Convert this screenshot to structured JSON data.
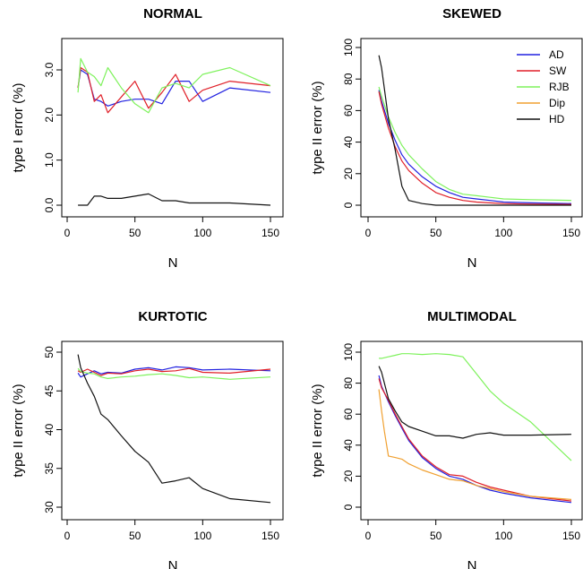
{
  "chart_data": [
    {
      "type": "line",
      "title": "NORMAL",
      "xlabel": "N",
      "ylabel": "type I error (%)",
      "xlim": [
        0,
        150
      ],
      "ylim": [
        0,
        3.5
      ],
      "xticks": [
        0,
        50,
        100,
        150
      ],
      "yticks": [
        0.0,
        1.0,
        2.0,
        3.0
      ],
      "ytick_labels": [
        "0.0",
        "1.0",
        "2.0",
        "3.0"
      ],
      "series": [
        {
          "name": "AD",
          "color": "#2020e0",
          "x": [
            8,
            10,
            15,
            20,
            25,
            30,
            40,
            50,
            60,
            70,
            80,
            90,
            100,
            120,
            150
          ],
          "y": [
            2.6,
            3.0,
            2.9,
            2.35,
            2.3,
            2.2,
            2.3,
            2.35,
            2.35,
            2.25,
            2.75,
            2.75,
            2.3,
            2.6,
            2.5
          ]
        },
        {
          "name": "SW",
          "color": "#e01f28",
          "x": [
            8,
            10,
            15,
            20,
            25,
            30,
            40,
            50,
            60,
            70,
            80,
            90,
            100,
            120,
            150
          ],
          "y": [
            2.6,
            3.05,
            2.95,
            2.3,
            2.45,
            2.05,
            2.4,
            2.75,
            2.15,
            2.5,
            2.9,
            2.3,
            2.55,
            2.75,
            2.65
          ]
        },
        {
          "name": "RJB",
          "color": "#7ef25c",
          "x": [
            8,
            10,
            15,
            20,
            25,
            30,
            40,
            50,
            60,
            70,
            80,
            90,
            100,
            120,
            150
          ],
          "y": [
            2.5,
            3.25,
            2.95,
            2.85,
            2.65,
            3.05,
            2.6,
            2.25,
            2.05,
            2.6,
            2.7,
            2.6,
            2.9,
            3.05,
            2.65
          ]
        },
        {
          "name": "HD",
          "color": "#111111",
          "x": [
            8,
            10,
            15,
            20,
            25,
            30,
            40,
            50,
            60,
            70,
            80,
            90,
            100,
            120,
            150
          ],
          "y": [
            0.0,
            0.0,
            0.0,
            0.2,
            0.2,
            0.15,
            0.15,
            0.2,
            0.25,
            0.1,
            0.1,
            0.05,
            0.05,
            0.05,
            0.0
          ]
        }
      ]
    },
    {
      "type": "line",
      "title": "SKEWED",
      "xlabel": "N",
      "ylabel": "type II error (%)",
      "xlim": [
        0,
        150
      ],
      "ylim": [
        0,
        100
      ],
      "xticks": [
        0,
        50,
        100,
        150
      ],
      "yticks": [
        0,
        20,
        40,
        60,
        80,
        100
      ],
      "legend": {
        "position": "top-right",
        "entries": [
          "AD",
          "SW",
          "RJB",
          "Dip",
          "HD"
        ]
      },
      "series": [
        {
          "name": "AD",
          "color": "#2020e0",
          "x": [
            8,
            10,
            15,
            20,
            25,
            30,
            40,
            50,
            60,
            70,
            80,
            90,
            100,
            120,
            150
          ],
          "y": [
            73,
            66,
            52,
            41,
            32,
            26,
            18,
            12,
            8,
            5,
            4,
            3,
            2,
            1.5,
            1
          ]
        },
        {
          "name": "SW",
          "color": "#e01f28",
          "x": [
            8,
            10,
            15,
            20,
            25,
            30,
            40,
            50,
            60,
            70,
            80,
            90,
            100,
            120,
            150
          ],
          "y": [
            72,
            64,
            49,
            37,
            28,
            22,
            14,
            8,
            5,
            3,
            2,
            1.5,
            1,
            0.7,
            0.5
          ]
        },
        {
          "name": "RJB",
          "color": "#7ef25c",
          "x": [
            8,
            10,
            15,
            20,
            25,
            30,
            40,
            50,
            60,
            70,
            80,
            90,
            100,
            120,
            150
          ],
          "y": [
            75,
            69,
            56,
            46,
            38,
            32,
            23,
            15,
            10,
            7,
            6,
            5,
            4,
            3.5,
            3
          ]
        },
        {
          "name": "Dip",
          "color": "#f0a030",
          "x": [],
          "y": []
        },
        {
          "name": "HD",
          "color": "#111111",
          "x": [
            8,
            10,
            15,
            20,
            25,
            30,
            40,
            50,
            60,
            70,
            80,
            90,
            100,
            120,
            150
          ],
          "y": [
            95,
            87,
            55,
            35,
            12,
            3,
            1,
            0,
            0,
            0,
            0,
            0,
            0,
            0,
            0
          ]
        }
      ]
    },
    {
      "type": "line",
      "title": "KURTOTIC",
      "xlabel": "N",
      "ylabel": "type II error (%)",
      "xlim": [
        0,
        150
      ],
      "ylim": [
        29.5,
        50.5
      ],
      "xticks": [
        0,
        50,
        100,
        150
      ],
      "yticks": [
        30,
        35,
        40,
        45,
        50
      ],
      "series": [
        {
          "name": "AD",
          "color": "#2020e0",
          "x": [
            8,
            10,
            15,
            20,
            25,
            30,
            40,
            50,
            60,
            70,
            80,
            90,
            100,
            120,
            150
          ],
          "y": [
            47.3,
            46.8,
            47.2,
            47.6,
            47.2,
            47.4,
            47.3,
            47.8,
            48.0,
            47.7,
            48.1,
            48.0,
            47.7,
            47.8,
            47.6
          ]
        },
        {
          "name": "SW",
          "color": "#e01f28",
          "x": [
            8,
            10,
            15,
            20,
            25,
            30,
            40,
            50,
            60,
            70,
            80,
            90,
            100,
            120,
            150
          ],
          "y": [
            47.6,
            47.4,
            47.8,
            47.4,
            47.0,
            47.3,
            47.2,
            47.6,
            47.8,
            47.5,
            47.6,
            47.9,
            47.4,
            47.3,
            47.8
          ]
        },
        {
          "name": "RJB",
          "color": "#7ef25c",
          "x": [
            8,
            10,
            15,
            20,
            25,
            30,
            40,
            50,
            60,
            70,
            80,
            90,
            100,
            120,
            150
          ],
          "y": [
            47.9,
            47.5,
            47.3,
            47.2,
            46.8,
            46.6,
            46.8,
            46.9,
            47.1,
            47.2,
            47.0,
            46.7,
            46.8,
            46.5,
            46.8
          ]
        },
        {
          "name": "HD",
          "color": "#111111",
          "x": [
            8,
            10,
            15,
            20,
            25,
            30,
            40,
            50,
            60,
            70,
            80,
            90,
            100,
            120,
            150
          ],
          "y": [
            49.7,
            48.0,
            46.0,
            44.3,
            42.0,
            41.3,
            39.2,
            37.2,
            35.8,
            33.1,
            33.4,
            33.8,
            32.4,
            31.1,
            30.6
          ]
        }
      ]
    },
    {
      "type": "line",
      "title": "MULTIMODAL",
      "xlabel": "N",
      "ylabel": "type II error (%)",
      "xlim": [
        0,
        150
      ],
      "ylim": [
        0,
        100
      ],
      "xticks": [
        0,
        50,
        100,
        150
      ],
      "yticks": [
        0,
        20,
        40,
        60,
        80,
        100
      ],
      "series": [
        {
          "name": "AD",
          "color": "#2020e0",
          "x": [
            8,
            10,
            15,
            20,
            25,
            30,
            40,
            50,
            60,
            70,
            80,
            90,
            100,
            120,
            150
          ],
          "y": [
            85,
            78,
            68,
            59,
            51,
            43,
            32,
            25,
            20,
            18,
            14,
            11,
            9,
            6,
            3
          ]
        },
        {
          "name": "SW",
          "color": "#e01f28",
          "x": [
            8,
            10,
            15,
            20,
            25,
            30,
            40,
            50,
            60,
            70,
            80,
            90,
            100,
            120,
            150
          ],
          "y": [
            83,
            77,
            69,
            60,
            52,
            44,
            33,
            26,
            21,
            20,
            16,
            13,
            11,
            7,
            4
          ]
        },
        {
          "name": "RJB",
          "color": "#7ef25c",
          "x": [
            8,
            10,
            15,
            20,
            25,
            30,
            40,
            50,
            60,
            70,
            80,
            90,
            100,
            120,
            150
          ],
          "y": [
            96,
            96,
            97,
            98,
            99,
            99,
            98.5,
            99,
            98.5,
            97,
            86,
            75,
            67,
            55,
            30
          ]
        },
        {
          "name": "Dip",
          "color": "#f0a030",
          "x": [
            8,
            10,
            12,
            15,
            20,
            25,
            30,
            40,
            50,
            60,
            70,
            80,
            90,
            100,
            120,
            150
          ],
          "y": [
            76,
            62,
            49,
            33,
            32,
            31,
            28,
            24,
            21,
            18,
            17,
            14,
            12,
            10,
            7,
            5
          ]
        },
        {
          "name": "HD",
          "color": "#111111",
          "x": [
            8,
            10,
            15,
            20,
            25,
            30,
            40,
            50,
            60,
            70,
            80,
            90,
            100,
            120,
            150
          ],
          "y": [
            91,
            87,
            70,
            62,
            55,
            52,
            49,
            46,
            46,
            44.5,
            47,
            48,
            46.5,
            46.5,
            47
          ]
        }
      ]
    }
  ]
}
